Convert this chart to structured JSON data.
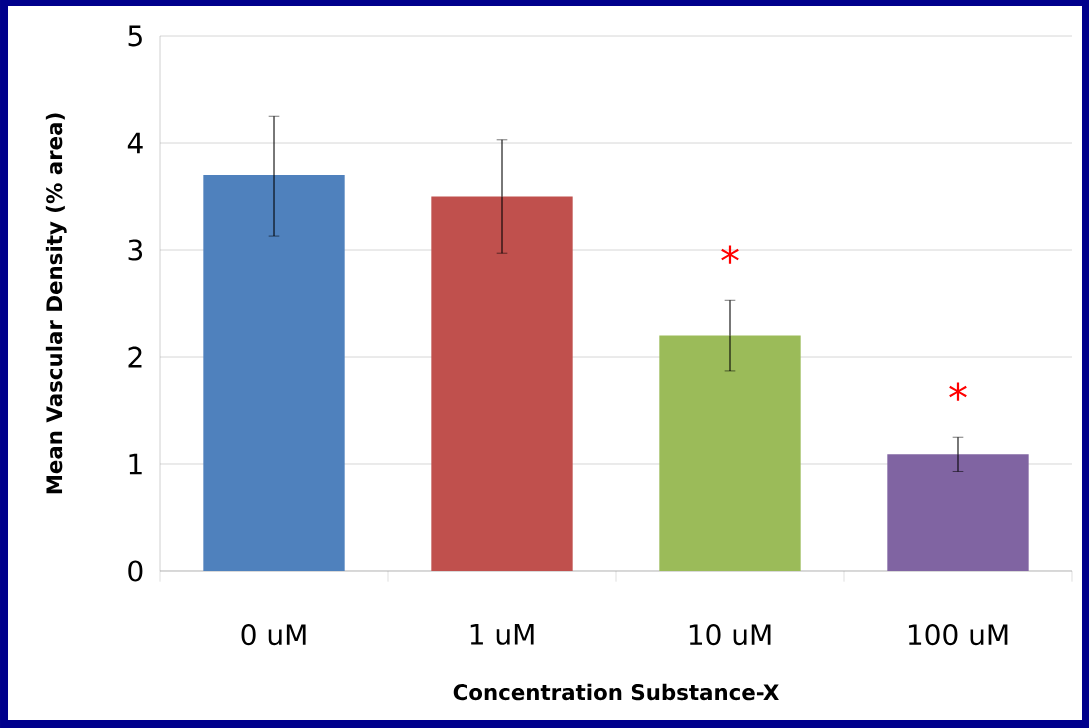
{
  "chart_data": {
    "type": "bar",
    "xlabel": "Concentration Substance-X",
    "ylabel": "Mean Vascular Density (% area)",
    "categories": [
      "0 uM",
      "1 uM",
      "10 uM",
      "100 uM"
    ],
    "values": [
      3.7,
      3.5,
      2.2,
      1.09
    ],
    "colors": [
      "#4f81bd",
      "#c0504d",
      "#9bbb59",
      "#8064a2"
    ],
    "errors": [
      [
        3.13,
        4.25
      ],
      [
        2.97,
        4.03
      ],
      [
        1.87,
        2.53
      ],
      [
        0.93,
        1.25
      ]
    ],
    "ylim": [
      0,
      5
    ],
    "yticks": [
      0,
      1,
      2,
      3,
      4,
      5
    ],
    "grid": "y",
    "annotations": [
      "*",
      "*"
    ]
  }
}
